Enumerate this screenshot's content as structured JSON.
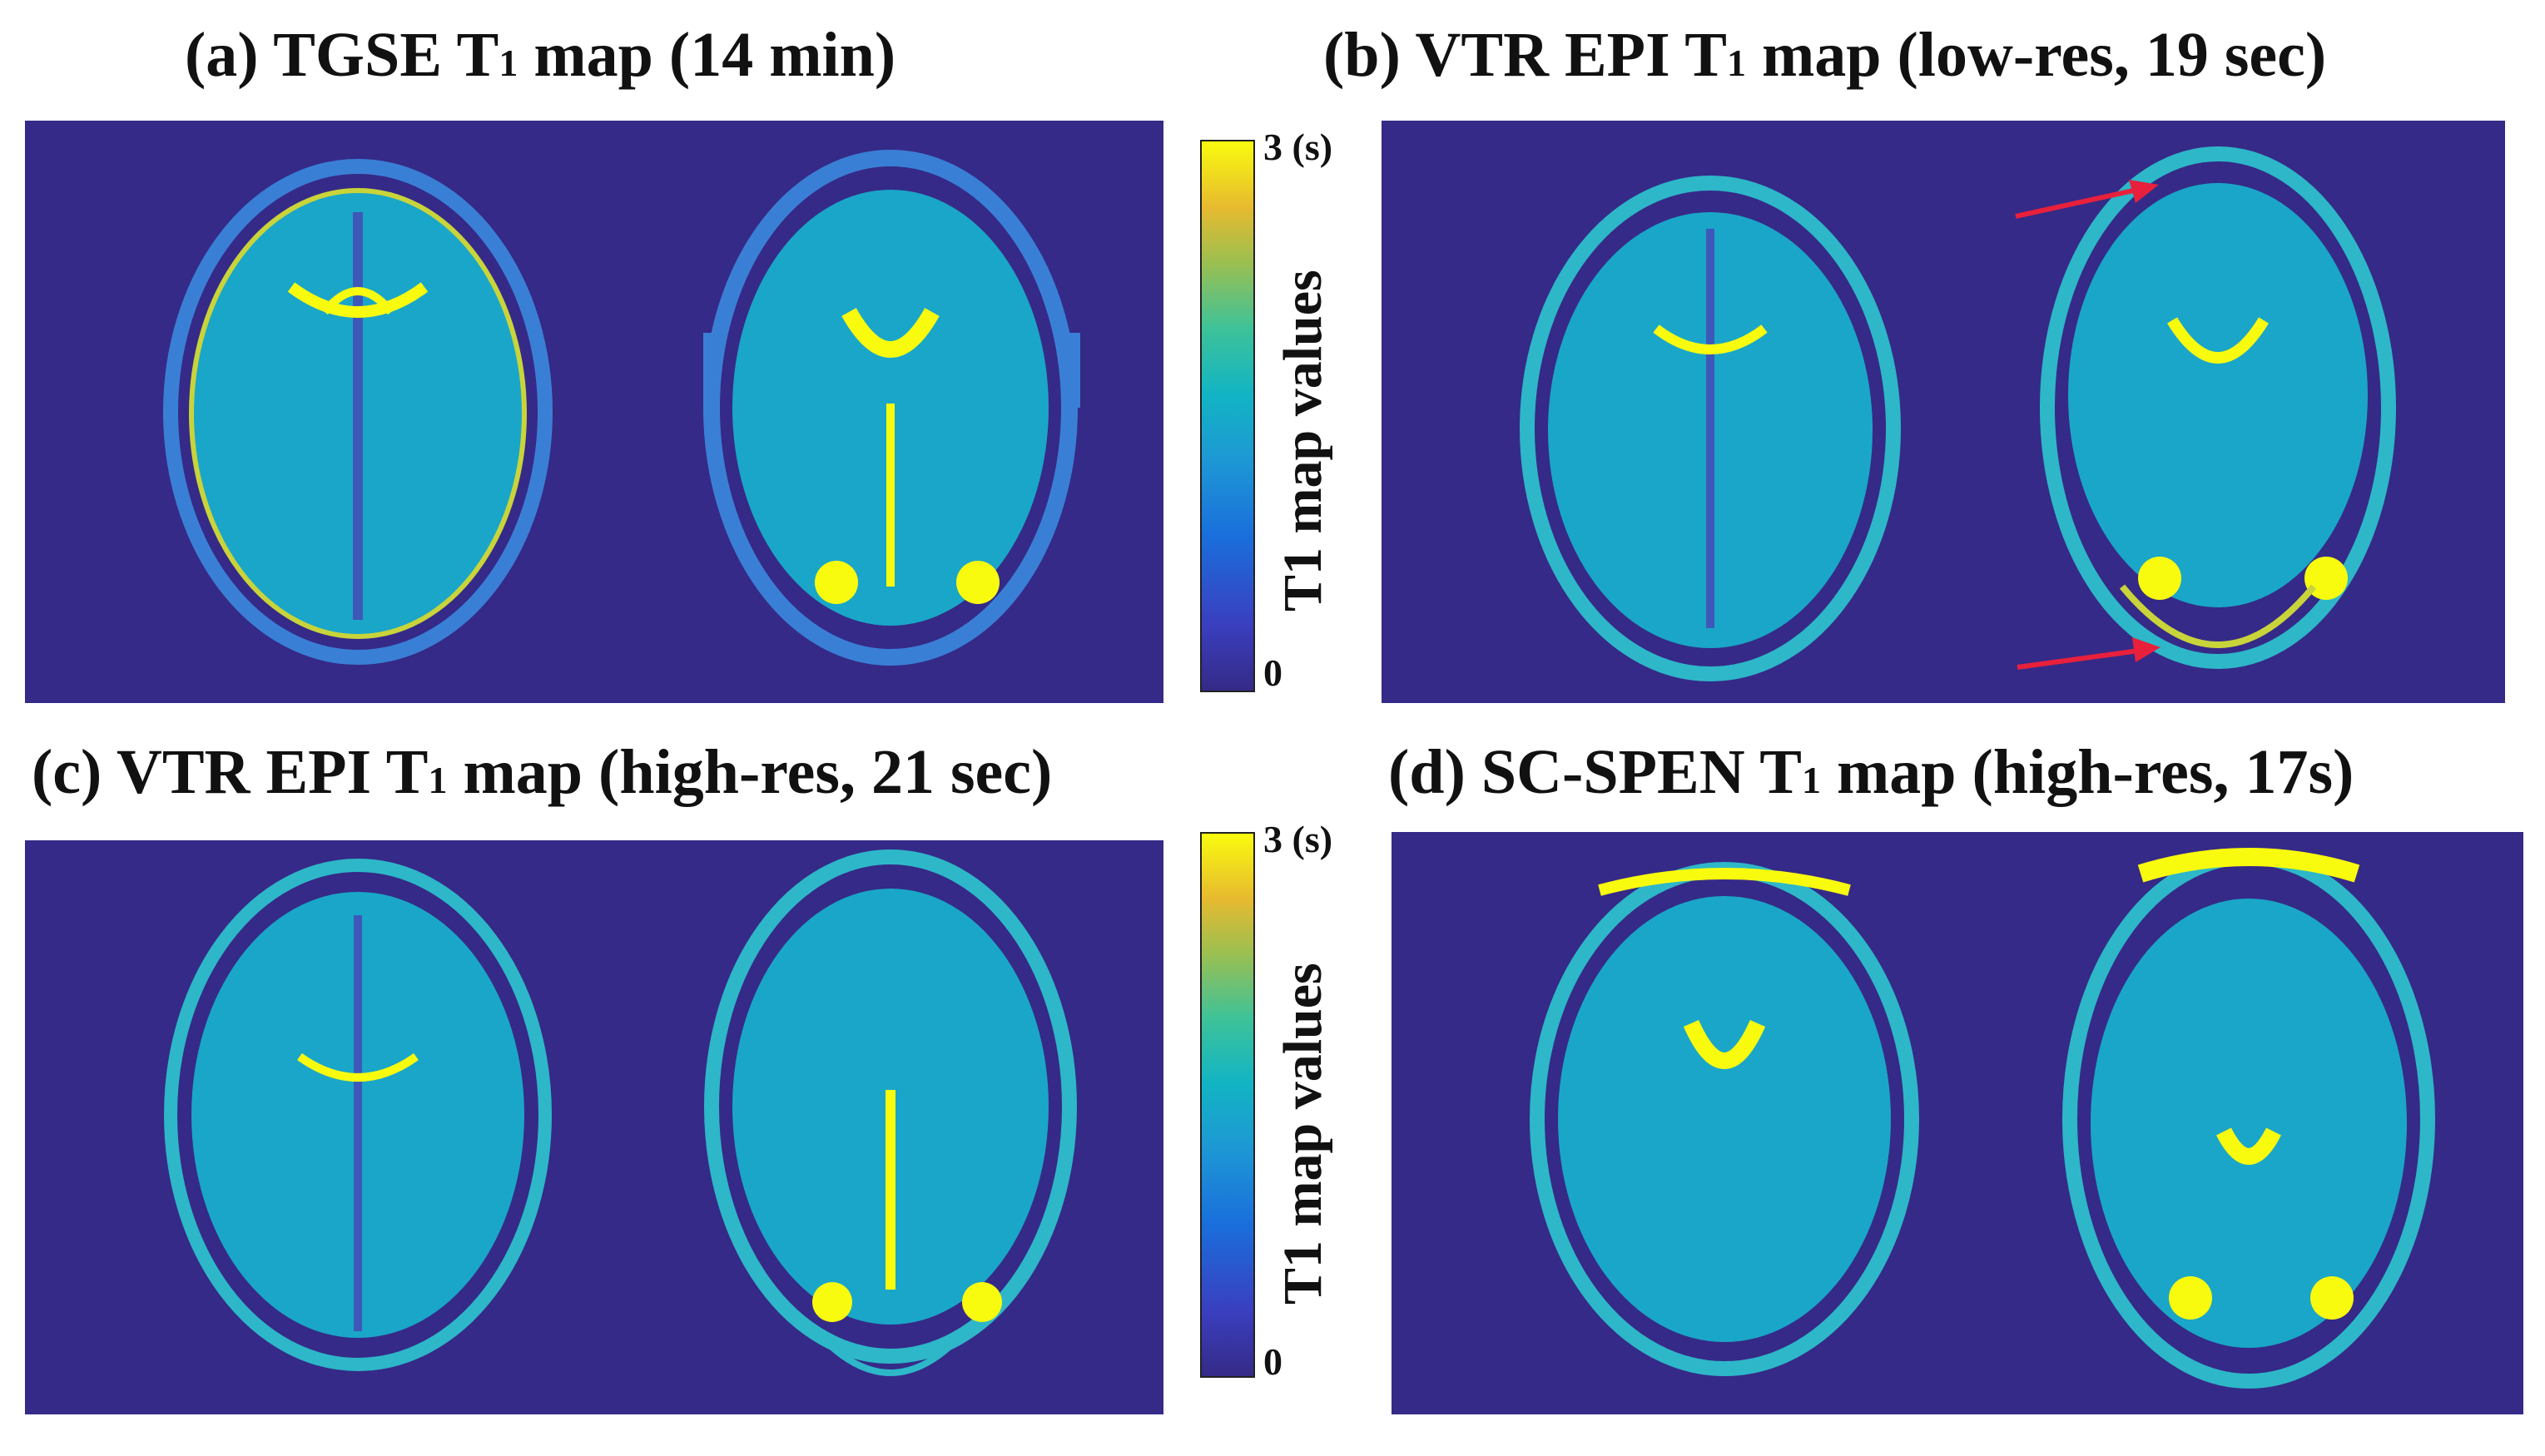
{
  "panels": {
    "a": {
      "title_main": "(a) TGSE T",
      "title_sub": "1",
      "title_rest": " map (14 min)"
    },
    "b": {
      "title_main": "(b) VTR EPI T",
      "title_sub": "1",
      "title_rest": " map (low-res, 19 sec)"
    },
    "c": {
      "title_main": "(c) VTR EPI T",
      "title_sub": "1",
      "title_rest": " map (high-res, 21 sec)"
    },
    "d": {
      "title_main": "(d) SC-SPEN T",
      "title_sub": "1",
      "title_rest": " map (high-res, 17s)"
    }
  },
  "colorbar": {
    "top_label": "3 (s)",
    "bottom_label": "0",
    "axis_label": "T1 map values",
    "colormap": "parula",
    "min": 0,
    "max": 3
  },
  "colors": {
    "background": "#352a87",
    "arrow": "#e8203c",
    "highlight": "#f9fb0e",
    "tissue": "#1d98d4"
  }
}
